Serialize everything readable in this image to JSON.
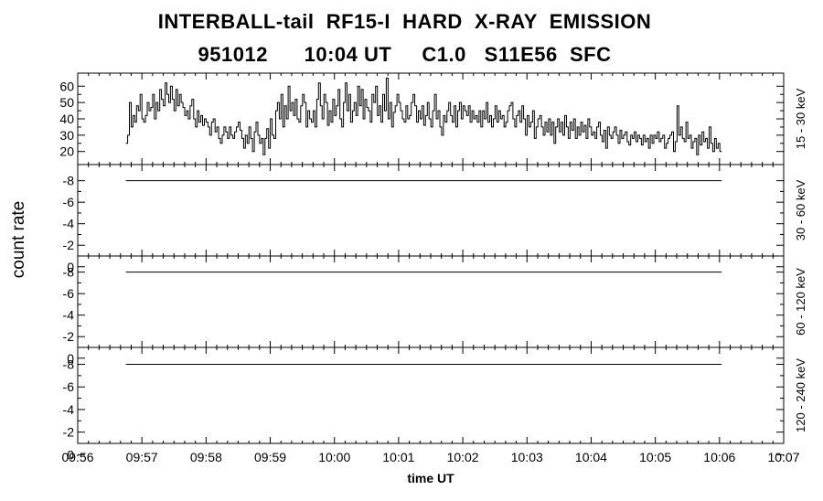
{
  "title_line1": "INTERBALL-tail  RF15-I  HARD  X-RAY  EMISSION",
  "title_line2": "951012      10:04 UT     C1.0   S11E56  SFC",
  "chart_data": {
    "type": "line",
    "title": "INTERBALL-tail  RF15-I  HARD  X-RAY  EMISSION",
    "subtitle": "951012      10:04 UT     C1.0   S11E56  SFC",
    "ylabel": "count rate",
    "xlabel": "time UT",
    "x_ticks": [
      "09:56",
      "09:57",
      "09:58",
      "09:59",
      "10:00",
      "10:01",
      "10:02",
      "10:03",
      "10:04",
      "10:05",
      "10:06",
      "10:07"
    ],
    "xlim": [
      "09:56",
      "10:07"
    ],
    "grid": false,
    "panels": [
      {
        "name": "15 - 30 keV",
        "ylim": [
          12,
          68
        ],
        "y_ticks": [
          "20",
          "30",
          "40",
          "50",
          "60"
        ],
        "y_tick_values": [
          20,
          30,
          40,
          50,
          60
        ],
        "series": [
          {
            "x_start": "09:56:45",
            "x_end": "10:06:02",
            "values": [
              25,
              30,
              50,
              35,
              42,
              38,
              48,
              45,
              55,
              40,
              38,
              42,
              50,
              45,
              47,
              55,
              40,
              50,
              45,
              58,
              52,
              48,
              62,
              55,
              50,
              60,
              52,
              45,
              58,
              48,
              55,
              50,
              47,
              42,
              45,
              40,
              48,
              52,
              40,
              35,
              45,
              38,
              42,
              36,
              40,
              38,
              35,
              30,
              38,
              40,
              32,
              35,
              28,
              25,
              30,
              35,
              32,
              28,
              35,
              30,
              28,
              32,
              35,
              38,
              33,
              28,
              22,
              30,
              25,
              35,
              28,
              20,
              32,
              38,
              30,
              25,
              28,
              18,
              28,
              34,
              22,
              40,
              30,
              28,
              45,
              50,
              40,
              55,
              35,
              48,
              40,
              60,
              45,
              50,
              42,
              52,
              40,
              38,
              48,
              55,
              50,
              35,
              45,
              40,
              38,
              45,
              35,
              52,
              62,
              48,
              40,
              55,
              50,
              36,
              45,
              38,
              52,
              42,
              48,
              58,
              40,
              35,
              50,
              62,
              45,
              55,
              38,
              45,
              50,
              42,
              60,
              48,
              58,
              40,
              52,
              47,
              45,
              38,
              55,
              50,
              60,
              42,
              48,
              38,
              55,
              45,
              65,
              40,
              50,
              35,
              44,
              48,
              55,
              50,
              45,
              40,
              38,
              48,
              40,
              42,
              50,
              55,
              48,
              38,
              45,
              40,
              48,
              36,
              42,
              50,
              40,
              35,
              45,
              55,
              40,
              45,
              35,
              30,
              42,
              38,
              45,
              50,
              42,
              38,
              48,
              35,
              45,
              50,
              40,
              48,
              45,
              42,
              48,
              38,
              45,
              40,
              42,
              38,
              45,
              35,
              45,
              40,
              50,
              38,
              42,
              35,
              40,
              48,
              38,
              45,
              40,
              42,
              35,
              38,
              45,
              48,
              50,
              40,
              35,
              42,
              45,
              38,
              48,
              40,
              30,
              42,
              35,
              38,
              45,
              28,
              35,
              40,
              42,
              35,
              30,
              38,
              32,
              40,
              30,
              38,
              25,
              35,
              40,
              32,
              38,
              30,
              42,
              35,
              28,
              38,
              33,
              40,
              28,
              35,
              30,
              38,
              32,
              36,
              28,
              40,
              35,
              30,
              32,
              28,
              35,
              38,
              30,
              26,
              33,
              22,
              35,
              30,
              28,
              32,
              35,
              30,
              25,
              33,
              28,
              30,
              32,
              26,
              24,
              30,
              28,
              32,
              26,
              30,
              28,
              24,
              30,
              26,
              28,
              22,
              30,
              25,
              30,
              28,
              32,
              26,
              28,
              30,
              22,
              25,
              28,
              30,
              32,
              20,
              26,
              48,
              30,
              35,
              28,
              26,
              38,
              28,
              30,
              22,
              26,
              28,
              18,
              30,
              24,
              32,
              26,
              28,
              22,
              35,
              25,
              20,
              28,
              22,
              25,
              20
            ]
          }
        ]
      },
      {
        "name": "30 - 60 keV",
        "ylim": [
          -1,
          -9.5
        ],
        "y_ticks": [
          "-8",
          "-6",
          "-4",
          "-2",
          "0"
        ],
        "y_tick_values": [
          -8,
          -6,
          -4,
          -2,
          0
        ],
        "series": [
          {
            "x_start": "09:56:45",
            "x_end": "10:06:02",
            "values": [
              -8,
              -8
            ]
          }
        ]
      },
      {
        "name": "60 - 120 keV",
        "ylim": [
          -1,
          -9.5
        ],
        "y_ticks": [
          "-8",
          "-6",
          "-4",
          "-2",
          "0"
        ],
        "y_tick_values": [
          -8,
          -6,
          -4,
          -2,
          0
        ],
        "series": [
          {
            "x_start": "09:56:45",
            "x_end": "10:06:02",
            "values": [
              -8,
              -8
            ]
          }
        ]
      },
      {
        "name": "120 - 240 keV",
        "ylim": [
          -1,
          -9.5
        ],
        "y_ticks": [
          "-8",
          "-6",
          "-4",
          "-2",
          "0"
        ],
        "y_tick_values": [
          -8,
          -6,
          -4,
          -2,
          0
        ],
        "series": [
          {
            "x_start": "09:56:45",
            "x_end": "10:06:02",
            "values": [
              -8,
              -8
            ]
          }
        ]
      }
    ]
  }
}
